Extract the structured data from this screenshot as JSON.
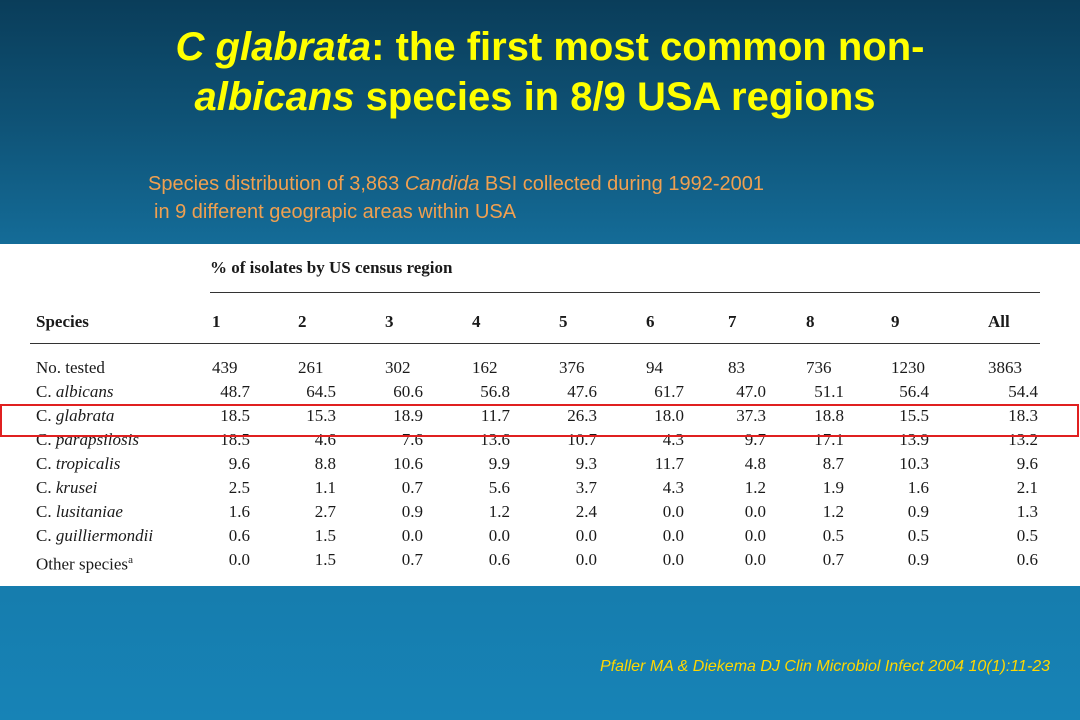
{
  "title": {
    "line1_em": "C glabrata",
    "line1_rest": ": the first most common non-",
    "line2_em": "albicans",
    "line2_rest": " species in 8/9 USA regions"
  },
  "subtitle": {
    "l1_a": "Species distribution of 3,863 ",
    "l1_em": "Candida",
    "l1_b": " BSI collected during 1992-2001",
    "l2": "in 9 different geograpic areas within USA"
  },
  "table": {
    "group_header": "% of isolates by US census region",
    "species_header": "Species",
    "columns": [
      "1",
      "2",
      "3",
      "4",
      "5",
      "6",
      "7",
      "8",
      "9",
      "All"
    ],
    "rows": [
      {
        "species": "No. tested",
        "italic": false,
        "values": [
          "439",
          "261",
          "302",
          "162",
          "376",
          "94",
          "83",
          "736",
          "1230",
          "3863"
        ]
      },
      {
        "species_prefix": "C. ",
        "species_em": "albicans",
        "italic": true,
        "values": [
          "48.7",
          "64.5",
          "60.6",
          "56.8",
          "47.6",
          "61.7",
          "47.0",
          "51.1",
          "56.4",
          "54.4"
        ]
      },
      {
        "species_prefix": "C. ",
        "species_em": "glabrata",
        "italic": true,
        "values": [
          "18.5",
          "15.3",
          "18.9",
          "11.7",
          "26.3",
          "18.0",
          "37.3",
          "18.8",
          "15.5",
          "18.3"
        ]
      },
      {
        "species_prefix": "C. ",
        "species_em": "parapsilosis",
        "italic": true,
        "values": [
          "18.5",
          "4.6",
          "7.6",
          "13.6",
          "10.7",
          "4.3",
          "9.7",
          "17.1",
          "13.9",
          "13.2"
        ]
      },
      {
        "species_prefix": "C. ",
        "species_em": "tropicalis",
        "italic": true,
        "values": [
          "9.6",
          "8.8",
          "10.6",
          "9.9",
          "9.3",
          "11.7",
          "4.8",
          "8.7",
          "10.3",
          "9.6"
        ]
      },
      {
        "species_prefix": "C. ",
        "species_em": "krusei",
        "italic": true,
        "values": [
          "2.5",
          "1.1",
          "0.7",
          "5.6",
          "3.7",
          "4.3",
          "1.2",
          "1.9",
          "1.6",
          "2.1"
        ]
      },
      {
        "species_prefix": "C. ",
        "species_em": "lusitaniae",
        "italic": true,
        "values": [
          "1.6",
          "2.7",
          "0.9",
          "1.2",
          "2.4",
          "0.0",
          "0.0",
          "1.2",
          "0.9",
          "1.3"
        ]
      },
      {
        "species_prefix": "C. ",
        "species_em": "guilliermondii",
        "italic": true,
        "values": [
          "0.6",
          "1.5",
          "0.0",
          "0.0",
          "0.0",
          "0.0",
          "0.0",
          "0.5",
          "0.5",
          "0.5"
        ]
      },
      {
        "species": "Other species",
        "superscript": "a",
        "italic": false,
        "values": [
          "0.0",
          "1.5",
          "0.7",
          "0.6",
          "0.0",
          "0.0",
          "0.0",
          "0.7",
          "0.9",
          "0.6"
        ]
      }
    ]
  },
  "citation": "Pfaller MA & Diekema DJ Clin Microbiol Infect 2004 10(1):11-23",
  "colors": {
    "title": "#ffff00",
    "subtitle": "#f0a050",
    "citation": "#ffd700",
    "highlight_box": "#e02020",
    "background_top": "#0a3d5a",
    "background_bottom": "#1783b6"
  }
}
